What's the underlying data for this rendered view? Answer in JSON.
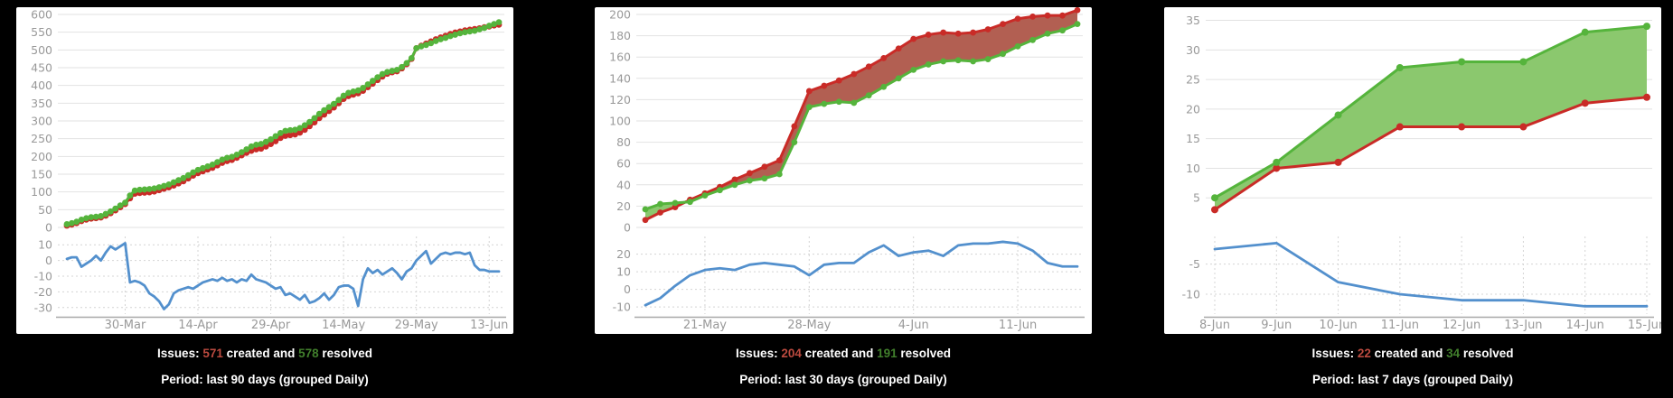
{
  "colors": {
    "background": "#000000",
    "panel_background": "#ffffff",
    "created_line": "#c92b27",
    "created_fill": "#b25f52",
    "resolved_line": "#55b43c",
    "resolved_fill": "#8bc86e",
    "difference_line": "#5390cd",
    "grid_main": "#e2e2e2",
    "grid_sub": "#d4d4d4",
    "axis_line": "#a8a8a8",
    "tick_label": "#999999",
    "caption_text": "#ffffff",
    "caption_created": "#bb4a3f",
    "caption_resolved": "#417f2c"
  },
  "chart_data": [
    {
      "type": "area",
      "panel": "created-vs-resolved-90-days",
      "x_labels": [
        "30-Mar",
        "14-Apr",
        "29-Apr",
        "14-May",
        "29-May",
        "13-Jun"
      ],
      "x_tick_indices": [
        12,
        27,
        42,
        57,
        72,
        87
      ],
      "main_axis": {
        "ylim": [
          0,
          600
        ],
        "ticks": [
          600,
          550,
          500,
          450,
          400,
          350,
          300,
          250,
          200,
          150,
          100,
          50,
          0
        ],
        "grid": "solid"
      },
      "sub_axis": {
        "ylim": [
          -33,
          13
        ],
        "ticks": [
          10,
          0,
          -10,
          -20,
          -30
        ],
        "grid": "dashed"
      },
      "series": [
        {
          "name": "created",
          "axis": "main",
          "values": [
            5,
            8,
            12,
            18,
            22,
            25,
            26,
            28,
            33,
            40,
            48,
            57,
            66,
            82,
            95,
            97,
            98,
            99,
            101,
            105,
            109,
            113,
            118,
            124,
            130,
            138,
            146,
            153,
            158,
            163,
            168,
            175,
            182,
            187,
            190,
            196,
            203,
            210,
            216,
            220,
            222,
            228,
            235,
            243,
            252,
            258,
            260,
            262,
            267,
            275,
            285,
            296,
            308,
            318,
            328,
            338,
            350,
            362,
            370,
            374,
            378,
            385,
            395,
            405,
            415,
            425,
            433,
            437,
            440,
            448,
            460,
            475,
            505,
            512,
            518,
            524,
            530,
            535,
            540,
            545,
            549,
            552,
            555,
            557,
            559,
            561,
            564,
            566,
            569,
            571
          ]
        },
        {
          "name": "resolved",
          "axis": "main",
          "values": [
            9,
            12,
            16,
            22,
            26,
            29,
            30,
            32,
            38,
            45,
            53,
            62,
            70,
            90,
            104,
            106,
            107,
            108,
            110,
            113,
            117,
            121,
            127,
            133,
            139,
            147,
            155,
            162,
            167,
            172,
            177,
            184,
            191,
            196,
            199,
            205,
            212,
            220,
            228,
            233,
            235,
            241,
            248,
            257,
            266,
            272,
            274,
            275,
            280,
            288,
            297,
            308,
            320,
            330,
            339,
            348,
            359,
            371,
            379,
            383,
            386,
            393,
            403,
            413,
            423,
            432,
            438,
            441,
            444,
            452,
            463,
            477,
            505,
            510,
            514,
            519,
            525,
            530,
            534,
            539,
            543,
            547,
            550,
            552,
            554,
            558,
            562,
            568,
            573,
            578
          ]
        },
        {
          "name": "difference",
          "axis": "sub",
          "values": [
            1,
            2,
            2,
            -4,
            -2,
            0,
            3,
            0,
            5,
            9,
            7,
            9,
            11,
            -14,
            -13,
            -14,
            -16,
            -21,
            -23,
            -26,
            -31,
            -28,
            -21,
            -19,
            -18,
            -17,
            -18,
            -16,
            -14,
            -13,
            -12,
            -13,
            -11,
            -13,
            -12,
            -14,
            -12,
            -13,
            -9,
            -12,
            -13,
            -14,
            -16,
            -18,
            -17,
            -22,
            -21,
            -23,
            -25,
            -22,
            -27,
            -26,
            -24,
            -21,
            -25,
            -22,
            -17,
            -16,
            -16,
            -18,
            -29,
            -12,
            -5,
            -8,
            -6,
            -9,
            -7,
            -5,
            -8,
            -12,
            -7,
            -5,
            0,
            3,
            6,
            -2,
            1,
            4,
            5,
            4,
            5,
            5,
            4,
            5,
            -3,
            -6,
            -6,
            -7,
            -7,
            -7
          ]
        }
      ],
      "caption": {
        "issues_label": "Issues: ",
        "created_value": "571",
        "created_suffix": " created and ",
        "resolved_value": "578",
        "resolved_suffix": " resolved",
        "period_prefix": "Period: last ",
        "period_days": "90",
        "period_mid": " days (grouped ",
        "period_group": "Daily",
        "period_close": ")"
      }
    },
    {
      "type": "area",
      "panel": "created-vs-resolved-30-days",
      "x_labels": [
        "21-May",
        "28-May",
        "4-Jun",
        "11-Jun"
      ],
      "x_tick_indices": [
        4,
        11,
        18,
        25
      ],
      "main_axis": {
        "ylim": [
          0,
          200
        ],
        "ticks": [
          200,
          180,
          160,
          140,
          120,
          100,
          80,
          60,
          40,
          20,
          0
        ],
        "grid": "solid"
      },
      "sub_axis": {
        "ylim": [
          -13,
          28
        ],
        "ticks": [
          20,
          10,
          0,
          -10
        ],
        "grid": "dashed"
      },
      "series": [
        {
          "name": "created",
          "axis": "main",
          "values": [
            7,
            14,
            19,
            26,
            32,
            38,
            45,
            51,
            57,
            63,
            95,
            128,
            133,
            138,
            144,
            151,
            159,
            168,
            177,
            181,
            183,
            182,
            183,
            186,
            191,
            196,
            198,
            199,
            199,
            204
          ]
        },
        {
          "name": "resolved",
          "axis": "main",
          "values": [
            17,
            22,
            23,
            24,
            30,
            35,
            40,
            44,
            46,
            50,
            80,
            113,
            116,
            118,
            117,
            124,
            132,
            140,
            148,
            153,
            156,
            157,
            156,
            158,
            163,
            170,
            176,
            182,
            185,
            191
          ]
        },
        {
          "name": "difference",
          "axis": "sub",
          "values": [
            -9,
            -5,
            2,
            8,
            11,
            12,
            11,
            14,
            15,
            14,
            13,
            8,
            14,
            15,
            15,
            21,
            25,
            19,
            21,
            22,
            19,
            25,
            26,
            26,
            27,
            26,
            22,
            15,
            13,
            13
          ]
        }
      ],
      "caption": {
        "issues_label": "Issues: ",
        "created_value": "204",
        "created_suffix": " created and ",
        "resolved_value": "191",
        "resolved_suffix": " resolved",
        "period_prefix": "Period: last ",
        "period_days": "30",
        "period_mid": " days (grouped ",
        "period_group": "Daily",
        "period_close": ")"
      }
    },
    {
      "type": "area",
      "panel": "created-vs-resolved-7-days",
      "x_labels": [
        "8-Jun",
        "9-Jun",
        "10-Jun",
        "11-Jun",
        "12-Jun",
        "13-Jun",
        "14-Jun",
        "15-Jun"
      ],
      "x_tick_indices": [
        0,
        1,
        2,
        3,
        4,
        5,
        6,
        7
      ],
      "main_axis": {
        "ylim": [
          0,
          36
        ],
        "ticks": [
          35,
          30,
          25,
          20,
          15,
          10,
          5
        ],
        "grid": "solid"
      },
      "sub_axis": {
        "ylim": [
          -13,
          -1
        ],
        "ticks": [
          -5,
          -10
        ],
        "grid": "dashed"
      },
      "series": [
        {
          "name": "created",
          "axis": "main",
          "values": [
            3,
            10,
            11,
            17,
            17,
            17,
            21,
            22
          ]
        },
        {
          "name": "resolved",
          "axis": "main",
          "values": [
            5,
            11,
            19,
            27,
            28,
            28,
            33,
            34
          ]
        },
        {
          "name": "difference",
          "axis": "sub",
          "values": [
            -2.5,
            -1.5,
            -8,
            -10,
            -11,
            -11,
            -12,
            -12
          ]
        }
      ],
      "caption": {
        "issues_label": "Issues: ",
        "created_value": "22",
        "created_suffix": " created and ",
        "resolved_value": "34",
        "resolved_suffix": " resolved",
        "period_prefix": "Period: last ",
        "period_days": "7",
        "period_mid": " days (grouped ",
        "period_group": "Daily",
        "period_close": ")"
      }
    }
  ]
}
